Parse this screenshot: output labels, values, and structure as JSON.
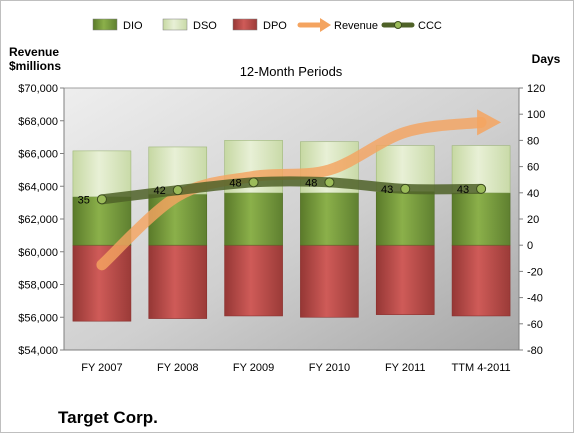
{
  "chart_data": {
    "type": "bar",
    "title": "12-Month Periods",
    "company": "Target Corp.",
    "categories": [
      "FY 2007",
      "FY 2008",
      "FY 2009",
      "FY 2010",
      "FY 2011",
      "TTM 4-2011"
    ],
    "left_axis": {
      "label_line1": "Revenue",
      "label_line2": "$millions",
      "range": [
        54000,
        70000
      ],
      "ticks": [
        "$54,000",
        "$56,000",
        "$58,000",
        "$60,000",
        "$62,000",
        "$64,000",
        "$66,000",
        "$68,000",
        "$70,000"
      ]
    },
    "right_axis": {
      "label": "Days",
      "range": [
        -80,
        120
      ],
      "ticks": [
        "-80",
        "-60",
        "-40",
        "-20",
        "0",
        "20",
        "40",
        "60",
        "80",
        "100",
        "120"
      ]
    },
    "legend": {
      "position": "top",
      "items": [
        {
          "label": "DIO",
          "kind": "box",
          "color": "#77933c"
        },
        {
          "label": "DSO",
          "kind": "box",
          "color": "#d7e4bd"
        },
        {
          "label": "DPO",
          "kind": "box",
          "color": "#c0504d"
        },
        {
          "label": "Revenue",
          "kind": "arrow",
          "color": "#f4a460"
        },
        {
          "label": "CCC",
          "kind": "line",
          "color": "#4f6228"
        }
      ]
    },
    "series": [
      {
        "name": "DIO",
        "axis": "days",
        "values": [
          37,
          39,
          40,
          40,
          41,
          40
        ]
      },
      {
        "name": "DSO",
        "axis": "days",
        "values": [
          35,
          36,
          40,
          39,
          35,
          36
        ]
      },
      {
        "name": "DPO",
        "axis": "days",
        "values": [
          -58,
          -56,
          -54,
          -55,
          -53,
          -54
        ]
      },
      {
        "name": "Revenue",
        "axis": "revenue",
        "values": [
          59200,
          63400,
          64600,
          65000,
          67300,
          67900
        ]
      },
      {
        "name": "CCC",
        "axis": "days",
        "values": [
          35,
          42,
          48,
          48,
          43,
          43
        ]
      }
    ],
    "data_labels": [
      "35",
      "42",
      "48",
      "48",
      "43",
      "43"
    ],
    "grid": false
  }
}
